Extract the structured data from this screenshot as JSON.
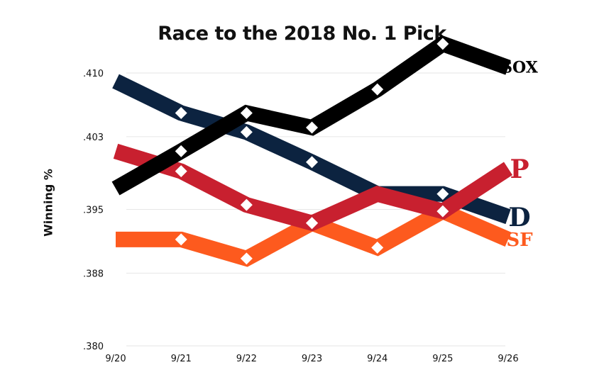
{
  "title": "Race to the 2018 No. 1 Pick",
  "chart_data": {
    "type": "line",
    "title": "Race to the 2018 No. 1 Pick",
    "xlabel": "",
    "ylabel": "Winning %",
    "categories": [
      "9/20",
      "9/21",
      "9/22",
      "9/23",
      "9/24",
      "9/25",
      "9/26"
    ],
    "ylim": [
      0.38,
      0.41
    ],
    "ytick_labels": [
      ".410",
      ".403",
      ".395",
      ".388",
      ".380"
    ],
    "ytick_values": [
      0.41,
      0.403,
      0.395,
      0.388,
      0.38
    ],
    "grid": true,
    "legend": "none (team logos at right end of lines)",
    "series": [
      {
        "team": "Chicago White Sox",
        "logo": "white-sox-logo",
        "logo_text": "SOX",
        "color": "#000000",
        "values": [
          0.3973,
          0.4014,
          0.4056,
          0.404,
          0.4082,
          0.4132,
          0.4106
        ],
        "marker_days": [
          1,
          2,
          3,
          4,
          5
        ]
      },
      {
        "team": "Detroit Tigers",
        "logo": "tigers-logo",
        "logo_text": "D",
        "color": "#0c2340",
        "values": [
          0.4091,
          0.4056,
          0.4035,
          0.4002,
          0.3967,
          0.3967,
          0.3942
        ],
        "marker_days": [
          1,
          2,
          3,
          5
        ]
      },
      {
        "team": "Philadelphia Phillies",
        "logo": "phillies-logo",
        "logo_text": "P",
        "color": "#c8202f",
        "values": [
          0.4014,
          0.3992,
          0.3955,
          0.3935,
          0.3967,
          0.3948,
          0.3995
        ],
        "marker_days": [
          1,
          2,
          3
        ]
      },
      {
        "team": "San Francisco Giants",
        "logo": "giants-logo",
        "logo_text": "SF",
        "color": "#fd5a1e",
        "values": [
          0.3917,
          0.3917,
          0.3896,
          0.3935,
          0.3908,
          0.3948,
          0.3917
        ],
        "marker_days": [
          1,
          2,
          3,
          4,
          5
        ]
      }
    ]
  }
}
